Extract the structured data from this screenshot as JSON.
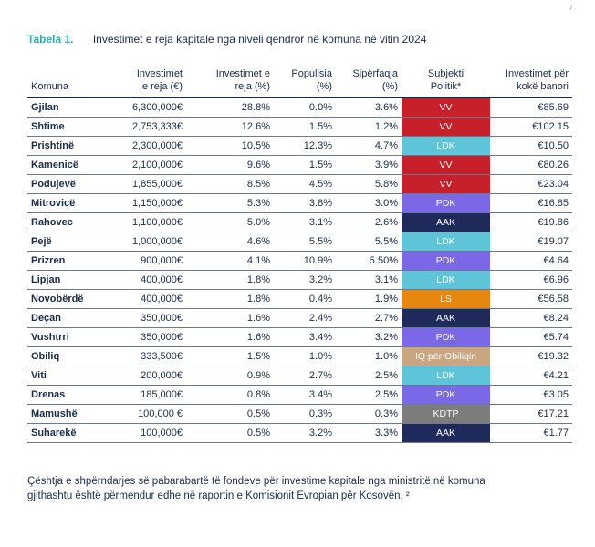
{
  "page_number": "7",
  "caption": {
    "label": "Tabela 1.",
    "title": "Investimet e reja kapitale nga niveli qendror në komuna në vitin 2024"
  },
  "table": {
    "headers": {
      "komuna": "Komuna",
      "inv1": "Investimet",
      "inv2": "e reja (€)",
      "pct1": "Investimet e",
      "pct2": "reja (%)",
      "pop1": "Popullsia",
      "pop2": "(%)",
      "area1": "Sipërfaqja",
      "area2": "(%)",
      "party1": "Subjekti",
      "party2": "Politik*",
      "per1": "Investimet për",
      "per2": "kokë banori"
    },
    "rows": [
      {
        "komuna": "Gjilan",
        "inv": "6,300,000€",
        "pct": "28.8%",
        "pop": "0.0%",
        "area": "3.6%",
        "party": "VV",
        "party_color": "#c8202a",
        "per": "€85.69"
      },
      {
        "komuna": "Shtime",
        "inv": "2,753,333€",
        "pct": "12.6%",
        "pop": "1.5%",
        "area": "1.2%",
        "party": "VV",
        "party_color": "#c8202a",
        "per": "€102.15"
      },
      {
        "komuna": "Prishtinë",
        "inv": "2,300,000€",
        "pct": "10.5%",
        "pop": "12.3%",
        "area": "4.7%",
        "party": "LDK",
        "party_color": "#5ec5d8",
        "per": "€10.50"
      },
      {
        "komuna": "Kamenicë",
        "inv": "2,100,000€",
        "pct": "9.6%",
        "pop": "1.5%",
        "area": "3.9%",
        "party": "VV",
        "party_color": "#c8202a",
        "per": "€80.26"
      },
      {
        "komuna": "Podujevë",
        "inv": "1,855,000€",
        "pct": "8.5%",
        "pop": "4.5%",
        "area": "5.8%",
        "party": "VV",
        "party_color": "#c8202a",
        "per": "€23.04"
      },
      {
        "komuna": "Mitrovicë",
        "inv": "1,150,000€",
        "pct": "5.3%",
        "pop": "3.8%",
        "area": "3.0%",
        "party": "PDK",
        "party_color": "#7a68e6",
        "per": "€16.85"
      },
      {
        "komuna": "Rahovec",
        "inv": "1,100,000€",
        "pct": "5.0%",
        "pop": "3.1%",
        "area": "2.6%",
        "party": "AAK",
        "party_color": "#1e2a5a",
        "per": "€19.86"
      },
      {
        "komuna": "Pejë",
        "inv": "1,000,000€",
        "pct": "4.6%",
        "pop": "5.5%",
        "area": "5.5%",
        "party": "LDK",
        "party_color": "#5ec5d8",
        "per": "€19.07"
      },
      {
        "komuna": "Prizren",
        "inv": "900,000€",
        "pct": "4.1%",
        "pop": "10.9%",
        "area": "5.50%",
        "party": "PDK",
        "party_color": "#7a68e6",
        "per": "€4.64"
      },
      {
        "komuna": "Lipjan",
        "inv": "400,000€",
        "pct": "1.8%",
        "pop": "3.2%",
        "area": "3.1%",
        "party": "LDK",
        "party_color": "#5ec5d8",
        "per": "€6.96"
      },
      {
        "komuna": "Novobërdë",
        "inv": "400,000€",
        "pct": "1.8%",
        "pop": "0.4%",
        "area": "1.9%",
        "party": "LS",
        "party_color": "#e8870f",
        "per": "€56.58"
      },
      {
        "komuna": "Deçan",
        "inv": "350,000€",
        "pct": "1.6%",
        "pop": "2.4%",
        "area": "2.7%",
        "party": "AAK",
        "party_color": "#1e2a5a",
        "per": "€8.24"
      },
      {
        "komuna": "Vushtrri",
        "inv": "350,000€",
        "pct": "1.6%",
        "pop": "3.4%",
        "area": "3.2%",
        "party": "PDK",
        "party_color": "#7a68e6",
        "per": "€5.74"
      },
      {
        "komuna": "Obiliq",
        "inv": "333,500€",
        "pct": "1.5%",
        "pop": "1.0%",
        "area": "1.0%",
        "party": "IQ për Obiliqin",
        "party_color": "#c9a680",
        "per": "€19.32"
      },
      {
        "komuna": "Viti",
        "inv": "200,000€",
        "pct": "0.9%",
        "pop": "2.7%",
        "area": "2.5%",
        "party": "LDK",
        "party_color": "#5ec5d8",
        "per": "€4.21"
      },
      {
        "komuna": "Drenas",
        "inv": "185,000€",
        "pct": "0.8%",
        "pop": "3.4%",
        "area": "2.5%",
        "party": "PDK",
        "party_color": "#7a68e6",
        "per": "€3.05"
      },
      {
        "komuna": "Mamushë",
        "inv": "100,000 €",
        "pct": "0.5%",
        "pop": "0.3%",
        "area": "0.3%",
        "party": "KDTP",
        "party_color": "#7c7c7c",
        "per": "€17.21"
      },
      {
        "komuna": "Suharekë",
        "inv": "100,000€",
        "pct": "0.5%",
        "pop": "3.2%",
        "area": "3.3%",
        "party": "AAK",
        "party_color": "#1e2a5a",
        "per": "€1.77"
      }
    ]
  },
  "paragraph": "Çështja e shpërndarjes së pabarabartë të fondeve për investime kapitale nga ministritë në komuna gjithashtu është përmendur edhe në raportin e Komisionit Evropian për Kosovën. ²"
}
